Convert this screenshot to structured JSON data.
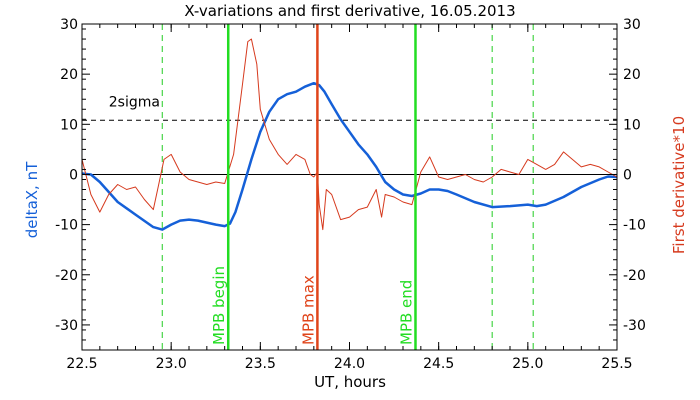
{
  "chart_data": {
    "type": "line",
    "title": "X-variations and first derivative, 16.05.2013",
    "xlabel": "UT, hours",
    "ylabel_left": "deltaX, nT",
    "ylabel_right": "First derivative*10",
    "xlim": [
      22.5,
      25.5
    ],
    "ylim": [
      -35,
      30
    ],
    "x_ticks": [
      22.5,
      23.0,
      23.5,
      24.0,
      24.5,
      25.0,
      25.5
    ],
    "x_tick_labels": [
      "22.5",
      "23.0",
      "23.5",
      "24.0",
      "24.5",
      "25.0",
      "25.5"
    ],
    "y_ticks": [
      -30,
      -20,
      -10,
      0,
      10,
      20,
      30
    ],
    "y_tick_labels": [
      "-30",
      "-20",
      "-10",
      "0",
      "10",
      "20",
      "30"
    ],
    "grid": false,
    "colors": {
      "deltaX": "#1560d8",
      "derivative": "#d63a1e",
      "mpb_begin": "#22dd22",
      "mpb_max": "#e0441a",
      "mpb_end": "#22dd22",
      "dashed_green": "#22cc22",
      "zero_line": "#000000",
      "sigma_line": "#000000"
    },
    "series": [
      {
        "key": "deltaX",
        "x": [
          22.5,
          22.55,
          22.6,
          22.7,
          22.8,
          22.9,
          22.95,
          23.0,
          23.05,
          23.1,
          23.15,
          23.2,
          23.25,
          23.3,
          23.33,
          23.36,
          23.4,
          23.45,
          23.5,
          23.55,
          23.6,
          23.65,
          23.7,
          23.75,
          23.8,
          23.83,
          23.86,
          23.9,
          23.95,
          24.0,
          24.05,
          24.1,
          24.15,
          24.2,
          24.25,
          24.3,
          24.35,
          24.4,
          24.45,
          24.5,
          24.55,
          24.6,
          24.7,
          24.8,
          24.9,
          25.0,
          25.05,
          25.1,
          25.2,
          25.3,
          25.4,
          25.45,
          25.5
        ],
        "y": [
          0.2,
          0.0,
          -1.5,
          -5.5,
          -8.0,
          -10.5,
          -11.0,
          -10.0,
          -9.2,
          -9.0,
          -9.2,
          -9.6,
          -10.0,
          -10.3,
          -9.8,
          -7.5,
          -3.0,
          3.0,
          8.5,
          12.5,
          15.0,
          16.0,
          16.5,
          17.5,
          18.2,
          17.8,
          16.5,
          14.0,
          11.0,
          8.5,
          6.0,
          4.0,
          1.5,
          -1.5,
          -3.0,
          -4.0,
          -4.3,
          -3.8,
          -3.0,
          -3.0,
          -3.3,
          -4.0,
          -5.5,
          -6.5,
          -6.3,
          -6.0,
          -6.3,
          -6.0,
          -4.5,
          -2.5,
          -1.0,
          -0.4,
          -0.5
        ]
      },
      {
        "key": "derivative",
        "x": [
          22.5,
          22.55,
          22.6,
          22.65,
          22.7,
          22.75,
          22.8,
          22.85,
          22.9,
          22.93,
          22.96,
          23.0,
          23.05,
          23.1,
          23.15,
          23.2,
          23.25,
          23.3,
          23.35,
          23.4,
          23.43,
          23.45,
          23.48,
          23.5,
          23.55,
          23.6,
          23.65,
          23.7,
          23.75,
          23.78,
          23.8,
          23.82,
          23.83,
          23.85,
          23.87,
          23.9,
          23.95,
          24.0,
          24.05,
          24.1,
          24.15,
          24.18,
          24.2,
          24.25,
          24.3,
          24.35,
          24.4,
          24.45,
          24.5,
          24.55,
          24.6,
          24.65,
          24.7,
          24.75,
          24.8,
          24.85,
          24.9,
          24.95,
          25.0,
          25.05,
          25.1,
          25.15,
          25.2,
          25.25,
          25.3,
          25.35,
          25.4,
          25.45,
          25.5
        ],
        "y": [
          3.0,
          -4.0,
          -7.5,
          -4.0,
          -2.0,
          -3.0,
          -2.5,
          -5.0,
          -7.0,
          -2.0,
          3.0,
          4.0,
          0.5,
          -1.0,
          -1.5,
          -2.0,
          -1.5,
          -1.8,
          4.0,
          18.0,
          26.5,
          27.0,
          22.0,
          13.0,
          7.0,
          4.0,
          2.0,
          4.0,
          3.0,
          0.0,
          -0.5,
          0.5,
          -6.0,
          -11.0,
          -3.0,
          -4.0,
          -9.0,
          -8.5,
          -7.0,
          -6.5,
          -3.0,
          -8.5,
          -4.0,
          -4.5,
          -5.5,
          -6.0,
          0.5,
          3.5,
          -0.5,
          -1.0,
          -0.5,
          0.0,
          -1.0,
          -1.5,
          -0.5,
          1.0,
          0.5,
          0.0,
          3.0,
          2.0,
          1.0,
          2.0,
          4.5,
          3.0,
          1.5,
          2.0,
          1.5,
          0.5,
          -0.5
        ]
      }
    ],
    "reference_lines": [
      {
        "key": "zero",
        "y": 0
      },
      {
        "key": "sigma",
        "y": 10.8,
        "label": "2sigma"
      }
    ],
    "event_lines": [
      {
        "key": "mpb_begin",
        "x": 23.32,
        "label": "MPB begin"
      },
      {
        "key": "mpb_max",
        "x": 23.82,
        "label": "MPB max"
      },
      {
        "key": "mpb_end",
        "x": 24.37,
        "label": "MPB end"
      }
    ],
    "dashed_event_lines": [
      22.95,
      23.32,
      24.8,
      25.03
    ]
  }
}
